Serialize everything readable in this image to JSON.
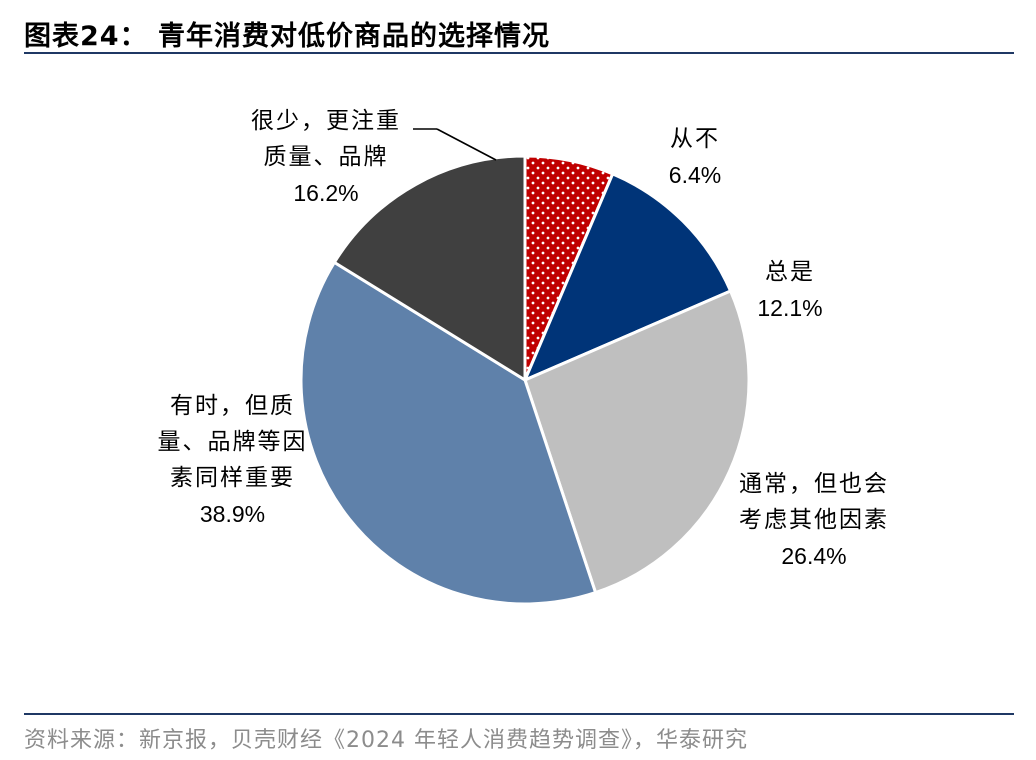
{
  "header": {
    "title": "图表24：  青年消费对低价商品的选择情况"
  },
  "footer": {
    "source": "资料来源：新京报，贝壳财经《2024 年轻人消费趋势调查》，华泰研究"
  },
  "chart_data": {
    "type": "pie",
    "title": "青年消费对低价商品的选择情况",
    "start_angle_deg": 0,
    "direction": "clockwise-from-top",
    "slices": [
      {
        "key": "congbu",
        "lines": [
          "从不"
        ],
        "value": 6.4,
        "pct_label": "6.4%",
        "color": "#c00000",
        "pattern": "dots"
      },
      {
        "key": "zongshi",
        "lines": [
          "总是"
        ],
        "value": 12.1,
        "pct_label": "12.1%",
        "color": "#003478",
        "pattern": "none"
      },
      {
        "key": "tongchang",
        "lines": [
          "通常，但也会",
          "考虑其他因素"
        ],
        "value": 26.4,
        "pct_label": "26.4%",
        "color": "#bfbfbf",
        "pattern": "none"
      },
      {
        "key": "youshi",
        "lines": [
          "有时，但质",
          "量、品牌等因",
          "素同样重要"
        ],
        "value": 38.9,
        "pct_label": "38.9%",
        "color": "#5f81aa",
        "pattern": "none"
      },
      {
        "key": "henshao",
        "lines": [
          "很少，更注重",
          "质量、品牌"
        ],
        "value": 16.2,
        "pct_label": "16.2%",
        "color": "#404040",
        "pattern": "none"
      }
    ]
  }
}
